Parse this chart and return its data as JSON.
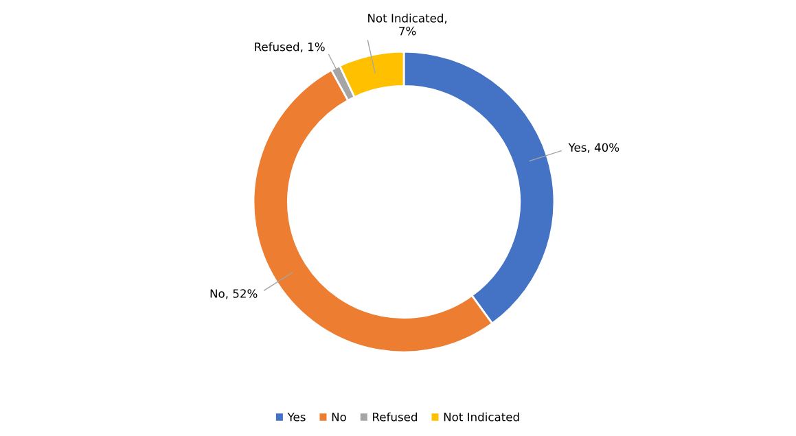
{
  "chart_data": {
    "type": "donut",
    "categories": [
      "Yes",
      "No",
      "Refused",
      "Not Indicated"
    ],
    "values": [
      40,
      52,
      1,
      7
    ],
    "colors": [
      "#4472c4",
      "#ed7d31",
      "#a5a5a5",
      "#ffc000"
    ],
    "value_labels": [
      "Yes, 40%",
      "No, 52%",
      "Refused, 1%",
      "Not Indicated,\n7%"
    ],
    "legend": "bottom"
  }
}
